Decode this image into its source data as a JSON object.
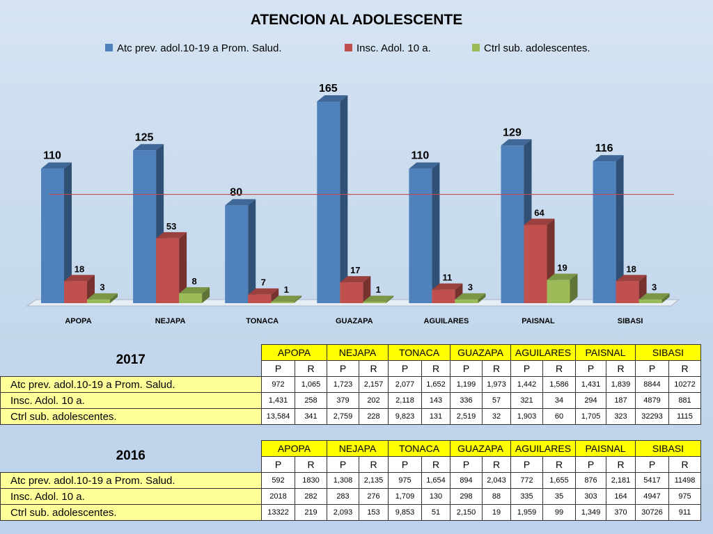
{
  "chart_data": {
    "type": "bar",
    "title": "ATENCION AL ADOLESCENTE",
    "categories": [
      "APOPA",
      "NEJAPA",
      "TONACA",
      "GUAZAPA",
      "AGUILARES",
      "PAISNAL",
      "SIBASI"
    ],
    "series": [
      {
        "name": "Atc prev. adol.10-19 a  Prom. Salud.",
        "color": "#4f81bd",
        "values": [
          110,
          125,
          80,
          165,
          110,
          129,
          116
        ]
      },
      {
        "name": "Insc. Adol. 10 a.",
        "color": "#c0504d",
        "values": [
          18,
          53,
          7,
          17,
          11,
          64,
          18
        ]
      },
      {
        "name": "Ctrl sub.  adolescentes.",
        "color": "#9bbb59",
        "values": [
          3,
          8,
          1,
          1,
          3,
          19,
          3
        ]
      }
    ],
    "reference_line": 89,
    "ylim": [
      0,
      170
    ],
    "legend_position": "top",
    "grid": false
  },
  "tables": [
    {
      "year": "2017",
      "municipalities": [
        "APOPA",
        "NEJAPA",
        "TONACA",
        "GUAZAPA",
        "AGUILARES",
        "PAISNAL",
        "SIBASI"
      ],
      "subheaders": [
        "P",
        "R",
        "P",
        "R",
        "P",
        "R",
        "P",
        "R",
        "P",
        "R",
        "P",
        "R",
        "P",
        "R"
      ],
      "rows": [
        {
          "label": "Atc prev. adol.10-19 a  Prom. Salud.",
          "values": [
            "972",
            "1,065",
            "1,723",
            "2,157",
            "2,077",
            "1,652",
            "1,199",
            "1,973",
            "1,442",
            "1,586",
            "1,431",
            "1,839",
            "8844",
            "10272"
          ]
        },
        {
          "label": "Insc. Adol. 10 a.",
          "values": [
            "1,431",
            "258",
            "379",
            "202",
            "2,118",
            "143",
            "336",
            "57",
            "321",
            "34",
            "294",
            "187",
            "4879",
            "881"
          ]
        },
        {
          "label": "Ctrl sub.  adolescentes.",
          "values": [
            "13,584",
            "341",
            "2,759",
            "228",
            "9,823",
            "131",
            "2,519",
            "32",
            "1,903",
            "60",
            "1,705",
            "323",
            "32293",
            "1115"
          ]
        }
      ]
    },
    {
      "year": "2016",
      "municipalities": [
        "APOPA",
        "NEJAPA",
        "TONACA",
        "GUAZAPA",
        "AGUILARES",
        "PAISNAL",
        "SIBASI"
      ],
      "subheaders": [
        "P",
        "R",
        "P",
        "R",
        "P",
        "R",
        "P",
        "R",
        "P",
        "R",
        "P",
        "R",
        "P",
        "R"
      ],
      "rows": [
        {
          "label": "Atc prev. adol.10-19 a  Prom. Salud.",
          "values": [
            "592",
            "1830",
            "1,308",
            "2,135",
            "975",
            "1,654",
            "894",
            "2,043",
            "772",
            "1,655",
            "876",
            "2,181",
            "5417",
            "11498"
          ]
        },
        {
          "label": "Insc. Adol. 10 a.",
          "values": [
            "2018",
            "282",
            "283",
            "276",
            "1,709",
            "130",
            "298",
            "88",
            "335",
            "35",
            "303",
            "164",
            "4947",
            "975"
          ]
        },
        {
          "label": "Ctrl sub.  adolescentes.",
          "values": [
            "13322",
            "219",
            "2,093",
            "153",
            "9,853",
            "51",
            "2,150",
            "19",
            "1,959",
            "99",
            "1,349",
            "370",
            "30726",
            "911"
          ]
        }
      ]
    }
  ]
}
